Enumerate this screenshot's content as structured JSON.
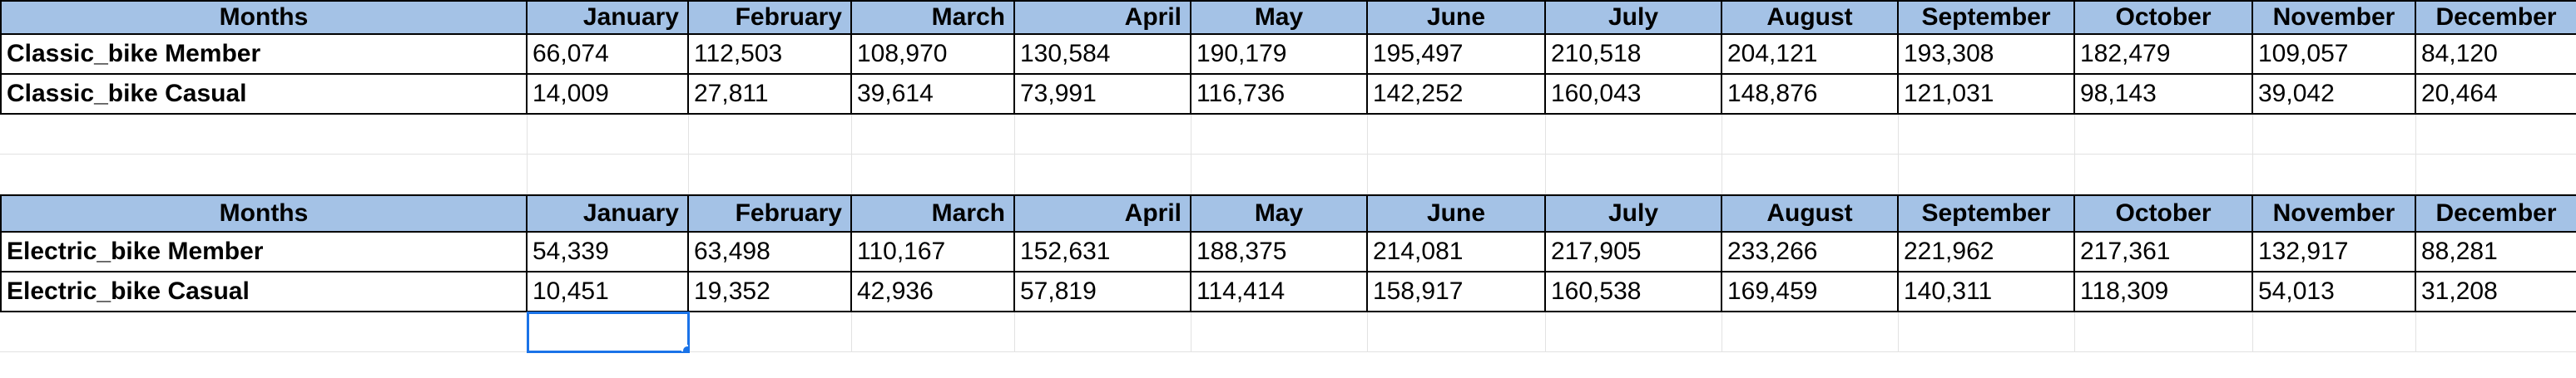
{
  "table1": {
    "header": [
      "Months",
      "January",
      "February",
      "March",
      "April",
      "May",
      "June",
      "July",
      "August",
      "September",
      "October",
      "November",
      "December"
    ],
    "rows": [
      [
        "Classic_bike Member",
        "66,074",
        "112,503",
        "108,970",
        "130,584",
        "190,179",
        "195,497",
        "210,518",
        "204,121",
        "193,308",
        "182,479",
        "109,057",
        "84,120"
      ],
      [
        "Classic_bike Casual",
        "14,009",
        "27,811",
        "39,614",
        "73,991",
        "116,736",
        "142,252",
        "160,043",
        "148,876",
        "121,031",
        "98,143",
        "39,042",
        "20,464"
      ]
    ]
  },
  "table2": {
    "header": [
      "Months",
      "January",
      "February",
      "March",
      "April",
      "May",
      "June",
      "July",
      "August",
      "September",
      "October",
      "November",
      "December"
    ],
    "rows": [
      [
        "Electric_bike Member",
        "54,339",
        "63,498",
        "110,167",
        "152,631",
        "188,375",
        "214,081",
        "217,905",
        "233,266",
        "221,962",
        "217,361",
        "132,917",
        "88,281"
      ],
      [
        "Electric_bike Casual",
        "10,451",
        "19,352",
        "42,936",
        "57,819",
        "114,414",
        "158,917",
        "160,538",
        "169,459",
        "140,311",
        "118,309",
        "54,013",
        "31,208"
      ]
    ]
  },
  "colors": {
    "header_bg": "#a4c2e6",
    "selection": "#1a73e8",
    "gridline": "#e2e2e2"
  }
}
